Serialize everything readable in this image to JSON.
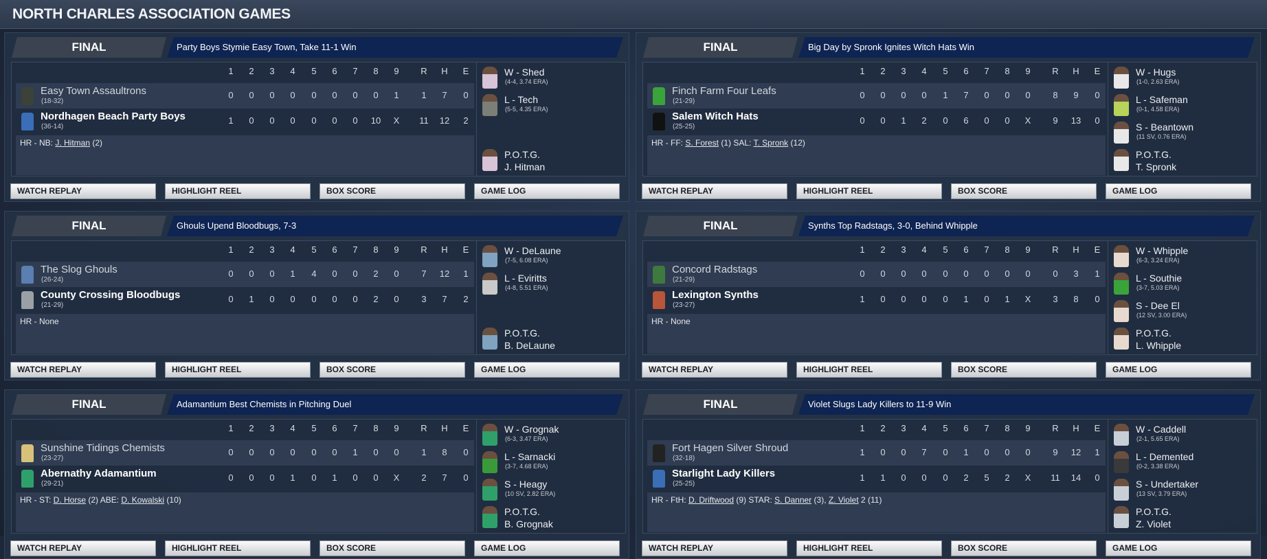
{
  "title": "NORTH CHARLES ASSOCIATION GAMES",
  "innings": [
    "1",
    "2",
    "3",
    "4",
    "5",
    "6",
    "7",
    "8",
    "9",
    "R",
    "H",
    "E"
  ],
  "buttons": [
    "WATCH REPLAY",
    "HIGHLIGHT REEL",
    "BOX SCORE",
    "GAME LOG"
  ],
  "games": [
    {
      "status": "FINAL",
      "headline": "Party Boys Stymie Easy Town, Take 11-1 Win",
      "teams": [
        {
          "name": "Easy Town Assaultrons",
          "record": "(18-32)",
          "icon_color": "#3c4238",
          "line": [
            "0",
            "0",
            "0",
            "0",
            "0",
            "0",
            "0",
            "0",
            "1",
            "1",
            "7",
            "0"
          ]
        },
        {
          "name": "Nordhagen Beach Party Boys",
          "record": "(36-14)",
          "icon_color": "#3a6fb8",
          "line": [
            "1",
            "0",
            "0",
            "0",
            "0",
            "0",
            "0",
            "10",
            "X",
            "11",
            "12",
            "2"
          ]
        }
      ],
      "hr": [
        {
          "t": "HR - NB: "
        },
        {
          "t": "J. Hitman",
          "link": true
        },
        {
          "t": " (2)"
        }
      ],
      "pitchers": [
        {
          "label": "W - Shed",
          "stat": "(4-4, 3.74 ERA)",
          "color": "#d9c3d6"
        },
        {
          "label": "L - Tech",
          "stat": "(5-5, 4.35 ERA)",
          "color": "#7c7f78"
        }
      ],
      "potg": {
        "label": "P.O.T.G.",
        "name": "J. Hitman",
        "color": "#d9c3d6"
      }
    },
    {
      "status": "FINAL",
      "headline": "Big Day by Spronk Ignites Witch Hats Win",
      "teams": [
        {
          "name": "Finch Farm Four Leafs",
          "record": "(21-29)",
          "icon_color": "#3aa43a",
          "line": [
            "0",
            "0",
            "0",
            "0",
            "1",
            "7",
            "0",
            "0",
            "0",
            "8",
            "9",
            "0"
          ]
        },
        {
          "name": "Salem Witch Hats",
          "record": "(25-25)",
          "icon_color": "#111111",
          "line": [
            "0",
            "0",
            "1",
            "2",
            "0",
            "6",
            "0",
            "0",
            "X",
            "9",
            "13",
            "0"
          ]
        }
      ],
      "hr": [
        {
          "t": "HR - FF: "
        },
        {
          "t": "S. Forest",
          "link": true
        },
        {
          "t": " (1)  SAL: "
        },
        {
          "t": "T. Spronk",
          "link": true
        },
        {
          "t": " (12)"
        }
      ],
      "pitchers": [
        {
          "label": "W - Hugs",
          "stat": "(1-0, 2.63 ERA)",
          "color": "#e8e8e8"
        },
        {
          "label": "L - Safeman",
          "stat": "(0-1, 4.58 ERA)",
          "color": "#b7d35a"
        },
        {
          "label": "S - Beantown",
          "stat": "(11 SV, 0.76 ERA)",
          "color": "#e8e8e8"
        }
      ],
      "potg": {
        "label": "P.O.T.G.",
        "name": "T. Spronk",
        "color": "#e8e8e8"
      }
    },
    {
      "status": "FINAL",
      "headline": "Ghouls Upend Bloodbugs, 7-3",
      "teams": [
        {
          "name": "The Slog Ghouls",
          "record": "(26-24)",
          "icon_color": "#5a7fb0",
          "line": [
            "0",
            "0",
            "0",
            "1",
            "4",
            "0",
            "0",
            "2",
            "0",
            "7",
            "12",
            "1"
          ]
        },
        {
          "name": "County Crossing Bloodbugs",
          "record": "(21-29)",
          "icon_color": "#9aa0a6",
          "line": [
            "0",
            "1",
            "0",
            "0",
            "0",
            "0",
            "0",
            "2",
            "0",
            "3",
            "7",
            "2"
          ]
        }
      ],
      "hr": [
        {
          "t": "HR - None"
        }
      ],
      "pitchers": [
        {
          "label": "W - DeLaune",
          "stat": "(7-5, 6.08 ERA)",
          "color": "#7fa3c0"
        },
        {
          "label": "L - Eviritts",
          "stat": "(4-8, 5.51 ERA)",
          "color": "#c9c9c9"
        }
      ],
      "potg": {
        "label": "P.O.T.G.",
        "name": "B. DeLaune",
        "color": "#7fa3c0"
      }
    },
    {
      "status": "FINAL",
      "headline": "Synths Top Radstags, 3-0, Behind Whipple",
      "teams": [
        {
          "name": "Concord Radstags",
          "record": "(21-29)",
          "icon_color": "#3e7a3e",
          "line": [
            "0",
            "0",
            "0",
            "0",
            "0",
            "0",
            "0",
            "0",
            "0",
            "0",
            "3",
            "1"
          ]
        },
        {
          "name": "Lexington Synths",
          "record": "(23-27)",
          "icon_color": "#b8553a",
          "line": [
            "1",
            "0",
            "0",
            "0",
            "0",
            "1",
            "0",
            "1",
            "X",
            "3",
            "8",
            "0"
          ]
        }
      ],
      "hr": [
        {
          "t": "HR - None"
        }
      ],
      "pitchers": [
        {
          "label": "W - Whipple",
          "stat": "(6-3, 3.24 ERA)",
          "color": "#e8d9cf"
        },
        {
          "label": "L - Southie",
          "stat": "(3-7, 5.03 ERA)",
          "color": "#3aa43a"
        },
        {
          "label": "S - Dee El",
          "stat": "(12 SV, 3.00 ERA)",
          "color": "#e8d9cf"
        }
      ],
      "potg": {
        "label": "P.O.T.G.",
        "name": "L. Whipple",
        "color": "#e8d9cf"
      }
    },
    {
      "status": "FINAL",
      "headline": "Adamantium Best Chemists in Pitching Duel",
      "teams": [
        {
          "name": "Sunshine Tidings Chemists",
          "record": "(23-27)",
          "icon_color": "#d8c27a",
          "line": [
            "0",
            "0",
            "0",
            "0",
            "0",
            "0",
            "1",
            "0",
            "0",
            "1",
            "8",
            "0"
          ]
        },
        {
          "name": "Abernathy Adamantium",
          "record": "(29-21)",
          "icon_color": "#2fa06a",
          "line": [
            "0",
            "0",
            "0",
            "1",
            "0",
            "1",
            "0",
            "0",
            "X",
            "2",
            "7",
            "0"
          ]
        }
      ],
      "hr": [
        {
          "t": "HR - ST: "
        },
        {
          "t": "D. Horse",
          "link": true
        },
        {
          "t": " (2)  ABE: "
        },
        {
          "t": "D. Kowalski",
          "link": true
        },
        {
          "t": " (10)"
        }
      ],
      "pitchers": [
        {
          "label": "W - Grognak",
          "stat": "(6-3, 3.47 ERA)",
          "color": "#2fa06a"
        },
        {
          "label": "L - Sarnacki",
          "stat": "(3-7, 4.68 ERA)",
          "color": "#3a9a3a"
        },
        {
          "label": "S - Heagy",
          "stat": "(10 SV, 2.82 ERA)",
          "color": "#2fa06a"
        }
      ],
      "potg": {
        "label": "P.O.T.G.",
        "name": "B. Grognak",
        "color": "#2fa06a"
      }
    },
    {
      "status": "FINAL",
      "headline": "Violet Slugs Lady Killers to 11-9 Win",
      "teams": [
        {
          "name": "Fort Hagen Silver Shroud",
          "record": "(32-18)",
          "icon_color": "#222222",
          "line": [
            "1",
            "0",
            "0",
            "7",
            "0",
            "1",
            "0",
            "0",
            "0",
            "9",
            "12",
            "1"
          ]
        },
        {
          "name": "Starlight Lady Killers",
          "record": "(25-25)",
          "icon_color": "#3a6fb8",
          "line": [
            "1",
            "1",
            "0",
            "0",
            "0",
            "2",
            "5",
            "2",
            "X",
            "11",
            "14",
            "0"
          ]
        }
      ],
      "hr": [
        {
          "t": "HR - FtH: "
        },
        {
          "t": "D. Driftwood",
          "link": true
        },
        {
          "t": " (9)  STAR: "
        },
        {
          "t": "S. Danner",
          "link": true
        },
        {
          "t": " (3), "
        },
        {
          "t": "Z. Violet",
          "link": true
        },
        {
          "t": " 2 (11)"
        }
      ],
      "pitchers": [
        {
          "label": "W - Caddell",
          "stat": "(2-1, 5.65 ERA)",
          "color": "#c8cfd6"
        },
        {
          "label": "L - Demented",
          "stat": "(0-2, 3.38 ERA)",
          "color": "#3a3a3a"
        },
        {
          "label": "S - Undertaker",
          "stat": "(13 SV, 3.79 ERA)",
          "color": "#c8cfd6"
        }
      ],
      "potg": {
        "label": "P.O.T.G.",
        "name": "Z. Violet",
        "color": "#c8cfd6"
      }
    }
  ]
}
